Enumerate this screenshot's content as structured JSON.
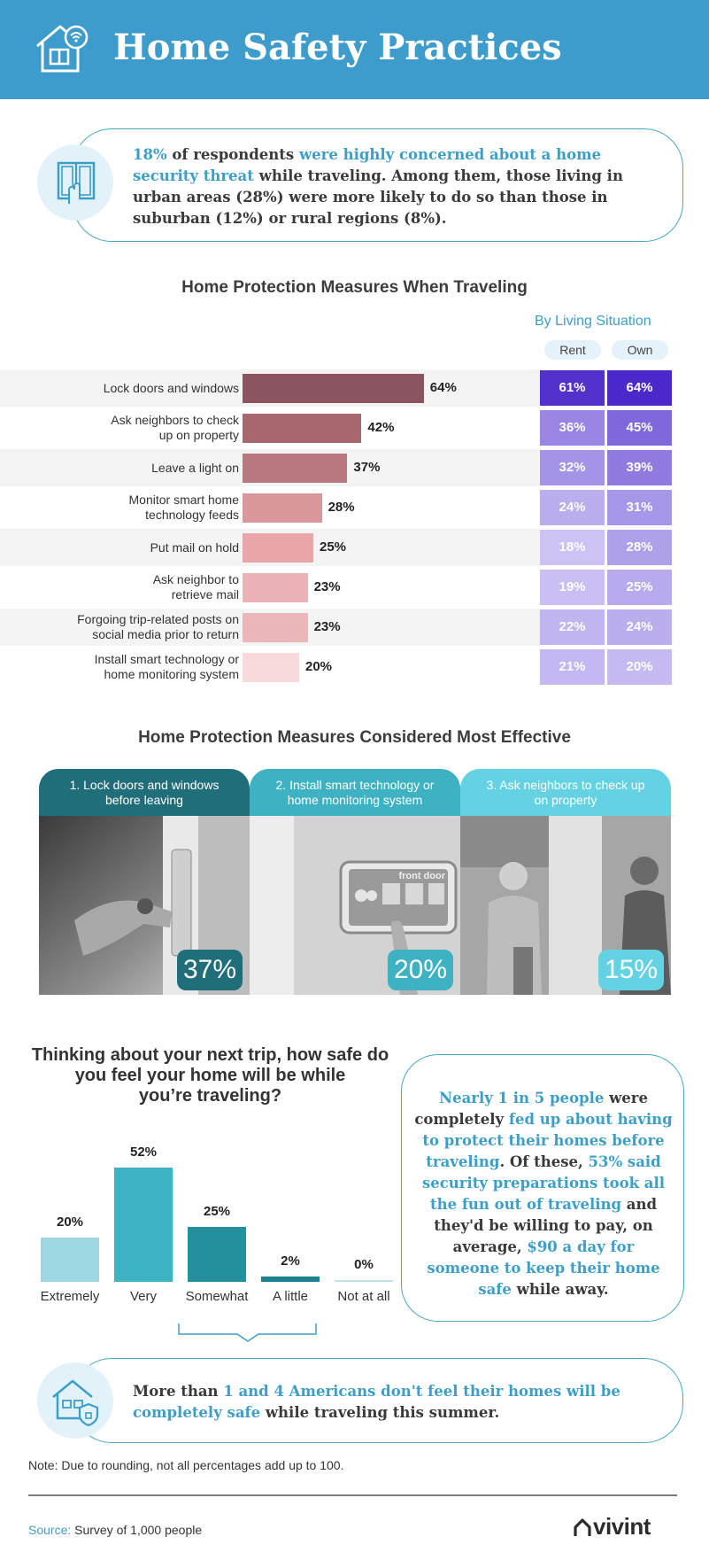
{
  "header": {
    "title": "Home Safety Practices",
    "icon": "smart-home-wifi-icon"
  },
  "callout_top": {
    "p1": "18%",
    "p2": " of respondents ",
    "p3": "were highly concerned about a home security threat",
    "p4": " while traveling. Among them, those living in urban areas (28%) were more likely to do so than those in suburban (12%) or rural regions (8%).",
    "icon": "window-touch-icon"
  },
  "chart_data": [
    {
      "type": "bar",
      "title": "Home Protection Measures When Traveling",
      "subtitle": "By Living Situation",
      "categories": [
        "Lock doors and windows",
        "Ask neighbors to check up on property",
        "Leave a light on",
        "Monitor smart home technology feeds",
        "Put mail on hold",
        "Ask neighbor to retrieve mail",
        "Forgoing trip-related posts on social media prior to return",
        "Install smart technology or home monitoring system"
      ],
      "category_lines": [
        [
          "Lock doors and windows"
        ],
        [
          "Ask neighbors to check",
          "up on property"
        ],
        [
          "Leave a light on"
        ],
        [
          "Monitor smart home",
          "technology feeds"
        ],
        [
          "Put mail on hold"
        ],
        [
          "Ask neighbor to",
          "retrieve mail"
        ],
        [
          "Forgoing trip-related posts on",
          "social media prior to return"
        ],
        [
          "Install smart technology or",
          "home monitoring system"
        ]
      ],
      "values": [
        64,
        42,
        37,
        28,
        25,
        23,
        23,
        20
      ],
      "value_labels": [
        "64%",
        "42%",
        "37%",
        "28%",
        "25%",
        "23%",
        "23%",
        "20%"
      ],
      "bar_colors": [
        "#8a5560",
        "#a8676f",
        "#b87a80",
        "#d9979b",
        "#e9a5aa",
        "#eab3b7",
        "#ebb6ba",
        "#f8dadd"
      ],
      "by_living": {
        "columns": [
          "Rent",
          "Own"
        ],
        "rent": [
          61,
          36,
          32,
          24,
          18,
          19,
          22,
          21
        ],
        "own": [
          64,
          45,
          39,
          31,
          28,
          25,
          24,
          20
        ],
        "rent_labels": [
          "61%",
          "36%",
          "32%",
          "24%",
          "18%",
          "19%",
          "22%",
          "21%"
        ],
        "own_labels": [
          "64%",
          "45%",
          "39%",
          "31%",
          "28%",
          "25%",
          "24%",
          "20%"
        ]
      }
    },
    {
      "type": "bar",
      "title": "Thinking about your next trip, how safe do you feel your home will be while you’re traveling?",
      "title_lines": [
        "Thinking about your next trip, how safe do",
        "you feel your home will be while",
        "you’re traveling?"
      ],
      "categories": [
        "Extremely",
        "Very",
        "Somewhat",
        "A little",
        "Not at all"
      ],
      "values": [
        20,
        52,
        25,
        2,
        0
      ],
      "value_labels": [
        "20%",
        "52%",
        "25%",
        "2%",
        "0%"
      ],
      "colors": [
        "#9cd7e2",
        "#3fb3c6",
        "#24909d",
        "#1f7f8c",
        "#bfe3ea"
      ]
    }
  ],
  "effective": {
    "title": "Home Protection Measures Considered Most Effective",
    "panels": [
      {
        "label_lines": [
          "1. Lock doors and windows",
          "before leaving"
        ],
        "pct": "37%",
        "color": "#1f6e7a",
        "photo": "key-in-door-photo"
      },
      {
        "label_lines": [
          "2. Install smart technology or",
          "home monitoring system"
        ],
        "pct": "20%",
        "color": "#3eb1c3",
        "photo": "smart-panel-photo",
        "screen_text": "front door"
      },
      {
        "label_lines": [
          "3. Ask neighbors to check up",
          "on property"
        ],
        "pct": "15%",
        "color": "#64d2e2",
        "photo": "neighbors-photo"
      }
    ]
  },
  "callout_right": {
    "p1": "Nearly 1 in 5 people",
    "p2": " were completely ",
    "p3": "fed up about having to protect their homes before traveling",
    "p4": ". Of these, ",
    "p5": "53% said security preparations took all the fun out of traveling",
    "p6": " and they'd be willing to pay, on average, ",
    "p7": "$90 a day for someone to keep their home safe",
    "p8": " while away."
  },
  "callout_bottom": {
    "p1": "More than ",
    "p2": "1 and 4 Americans don't feel their homes will be completely safe",
    "p3": " while traveling this summer.",
    "icon": "house-shield-icon"
  },
  "note": "Note: Due to rounding, not all percentages add up to 100.",
  "source": {
    "label": "Source:",
    "text": " Survey of 1,000 people"
  },
  "logo": "vivint",
  "colors": {
    "header": "#3d9ccc",
    "accent": "#3d9fc7",
    "rent_own_base": "#4a25c9"
  }
}
